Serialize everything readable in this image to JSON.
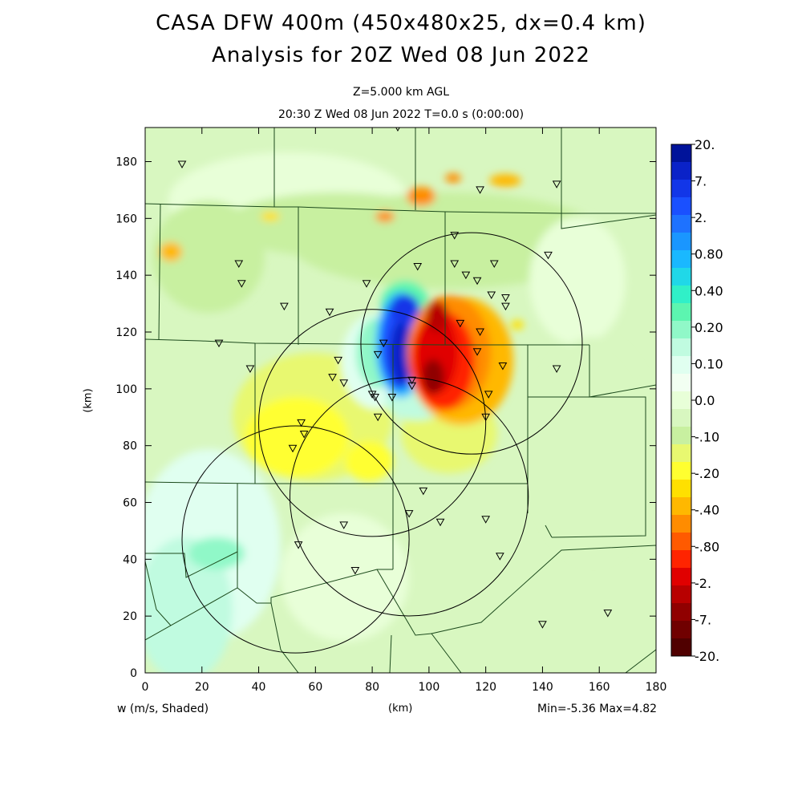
{
  "header": {
    "title_line1": "CASA DFW 400m (450x480x25, dx=0.4 km)",
    "title_line2": "Analysis for 20Z Wed 08 Jun 2022",
    "level": "Z=5.000 km AGL",
    "time": "20:30 Z Wed 08 Jun 2022    T=0.0 s (0:00:00)"
  },
  "footer": {
    "variable": "w (m/s, Shaded)",
    "xunit": "(km)",
    "minmax": "Min=-5.36 Max=4.82"
  },
  "chart_data": {
    "type": "heatmap",
    "variable": "w (m/s, Shaded)",
    "xlabel": "(km)",
    "ylabel": "(km)",
    "xlim": [
      0,
      180
    ],
    "ylim": [
      0,
      192
    ],
    "x_ticks": [
      "0",
      "20",
      "40",
      "60",
      "80",
      "100",
      "120",
      "140",
      "160",
      "180"
    ],
    "y_ticks": [
      "0",
      "20",
      "40",
      "60",
      "80",
      "100",
      "120",
      "140",
      "160",
      "180"
    ],
    "min": -5.36,
    "max": 4.82,
    "colorbar": {
      "labels": [
        "20.",
        "7.",
        "2.",
        "0.80",
        "0.40",
        "0.20",
        "0.10",
        "0.0",
        "-.10",
        "-.20",
        "-.40",
        "-.80",
        "-2.",
        "-7.",
        "-20."
      ],
      "colors": [
        "#00139a",
        "#0a22c8",
        "#1236e8",
        "#1a50ff",
        "#1e72ff",
        "#1a96ff",
        "#1ab8ff",
        "#20d8e8",
        "#30f0c8",
        "#5cf5b0",
        "#90f8c8",
        "#c0fbe0",
        "#e0fff0",
        "#f2fff2",
        "#e8ffd8",
        "#d8f7c0",
        "#c8f0a0",
        "#e8f870",
        "#ffff30",
        "#ffe000",
        "#ffb800",
        "#ff8c00",
        "#ff5a00",
        "#ff2400",
        "#e00000",
        "#b80000",
        "#900000",
        "#700000",
        "#500000"
      ]
    },
    "features": [
      {
        "kind": "downdraft",
        "sign": "negative",
        "x": 103,
        "y": 112
      },
      {
        "kind": "updraft",
        "sign": "positive",
        "x": 88,
        "y": 115
      }
    ],
    "radar_rings": [
      {
        "x": 115,
        "y": 116,
        "r": 39
      },
      {
        "x": 80,
        "y": 88,
        "r": 40
      },
      {
        "x": 93,
        "y": 62,
        "r": 42
      },
      {
        "x": 53,
        "y": 47,
        "r": 40
      }
    ],
    "stations": [
      [
        13,
        179
      ],
      [
        89,
        192
      ],
      [
        118,
        170
      ],
      [
        145,
        172
      ],
      [
        109,
        154
      ],
      [
        142,
        147
      ],
      [
        33,
        144
      ],
      [
        34,
        137
      ],
      [
        49,
        129
      ],
      [
        78,
        137
      ],
      [
        96,
        143
      ],
      [
        109,
        144
      ],
      [
        113,
        140
      ],
      [
        117,
        138
      ],
      [
        123,
        144
      ],
      [
        122,
        133
      ],
      [
        127,
        132
      ],
      [
        127,
        129
      ],
      [
        65,
        127
      ],
      [
        111,
        123
      ],
      [
        118,
        120
      ],
      [
        26,
        116
      ],
      [
        37,
        107
      ],
      [
        68,
        110
      ],
      [
        66,
        104
      ],
      [
        70,
        102
      ],
      [
        117,
        113
      ],
      [
        126,
        108
      ],
      [
        145,
        107
      ],
      [
        84,
        116
      ],
      [
        82,
        112
      ],
      [
        94,
        103
      ],
      [
        94,
        101
      ],
      [
        80,
        98
      ],
      [
        81,
        97
      ],
      [
        87,
        97
      ],
      [
        82,
        90
      ],
      [
        121,
        98
      ],
      [
        120,
        90
      ],
      [
        55,
        88
      ],
      [
        56,
        84
      ],
      [
        52,
        79
      ],
      [
        98,
        64
      ],
      [
        93,
        56
      ],
      [
        70,
        52
      ],
      [
        104,
        53
      ],
      [
        120,
        54
      ],
      [
        54,
        45
      ],
      [
        125,
        41
      ],
      [
        74,
        36
      ],
      [
        140,
        17
      ],
      [
        163,
        21
      ]
    ]
  }
}
